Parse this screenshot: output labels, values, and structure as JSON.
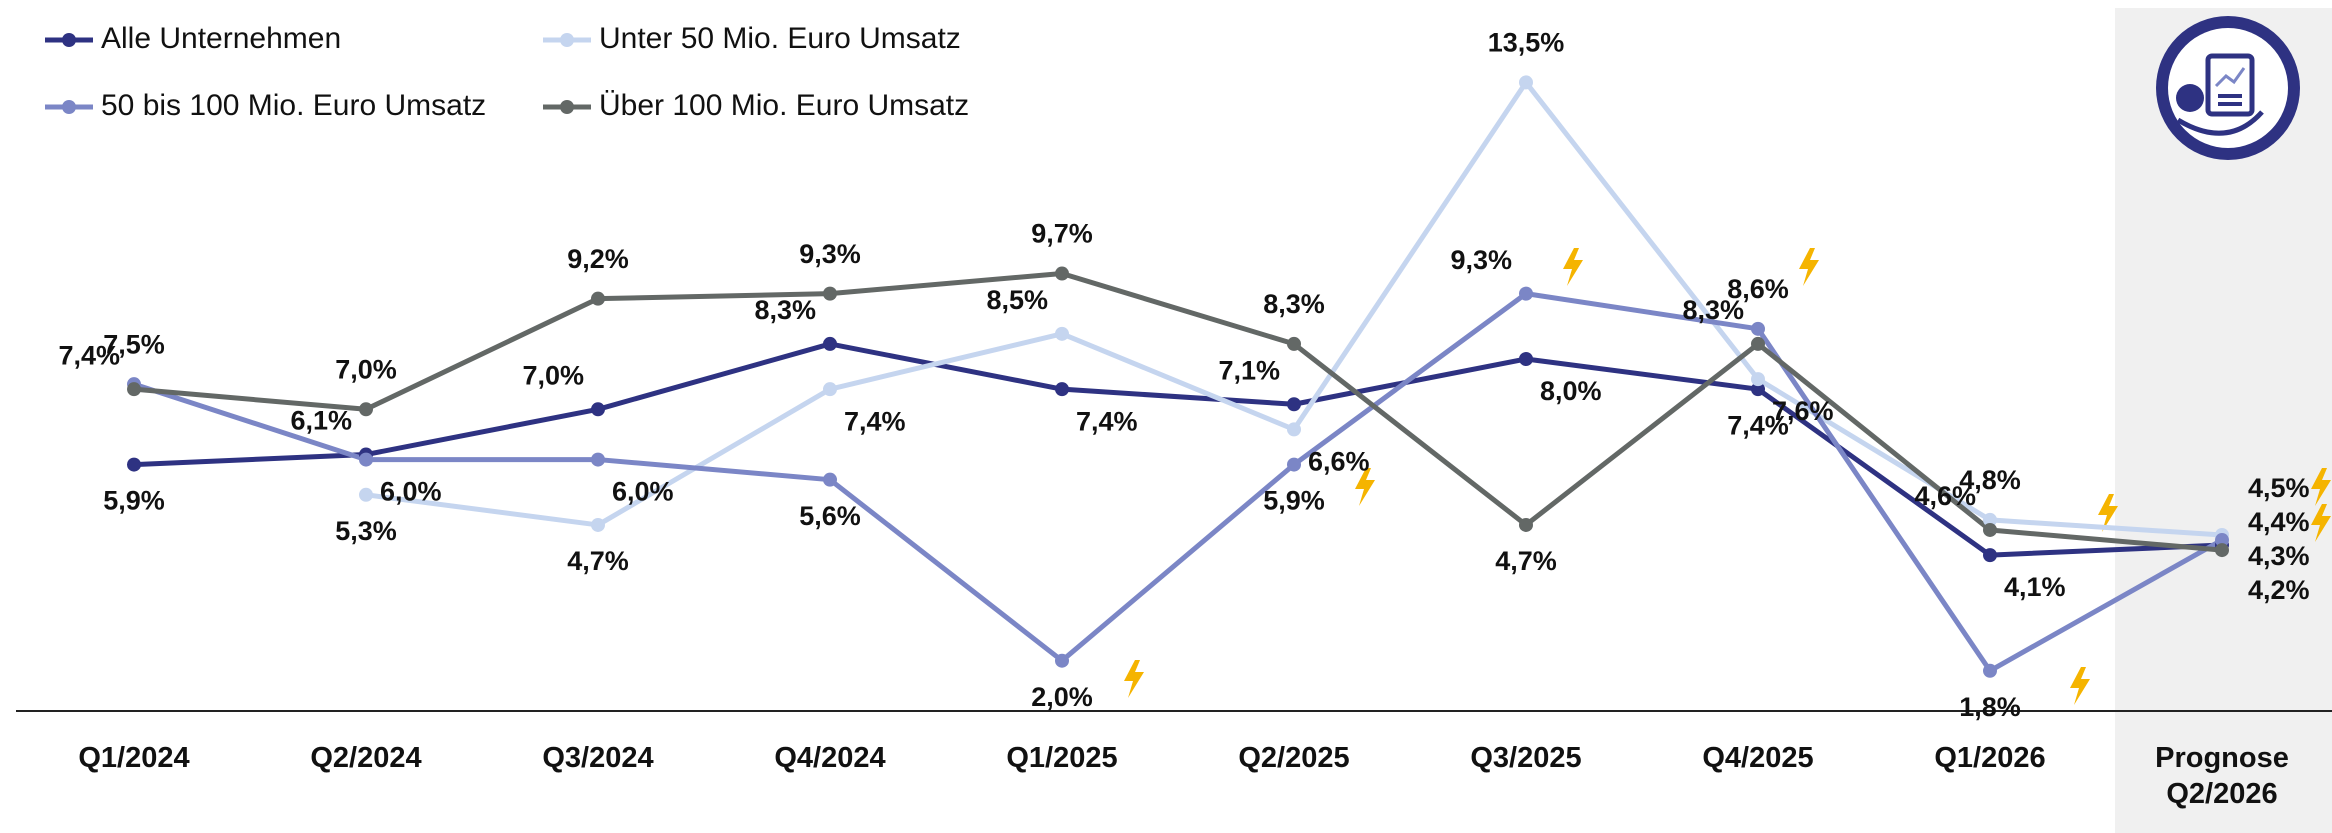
{
  "chart_data": {
    "type": "line",
    "categories": [
      "Q1/2024",
      "Q2/2024",
      "Q3/2024",
      "Q4/2024",
      "Q1/2025",
      "Q2/2025",
      "Q3/2025",
      "Q4/2025",
      "Q1/2026",
      "Prognose Q2/2026"
    ],
    "series": [
      {
        "name": "Alle Unternehmen",
        "color": "#2e3282",
        "values": [
          5.9,
          6.1,
          7.0,
          8.3,
          7.4,
          7.1,
          8.0,
          7.4,
          4.1,
          4.3
        ],
        "value_labels": [
          "5,9%",
          "6,1%",
          "7,0%",
          "8,3%",
          "7,4%",
          "7,1%",
          "8,0%",
          "7,4%",
          "4,1%",
          "4,3%"
        ]
      },
      {
        "name": "Unter 50 Mio. Euro Umsatz",
        "color": "#c5d5ef",
        "values": [
          null,
          5.3,
          4.7,
          7.4,
          8.5,
          6.6,
          13.5,
          7.6,
          4.8,
          4.5
        ],
        "value_labels": [
          null,
          "5,3%",
          "4,7%",
          "7,4%",
          "8,5%",
          "6,6%",
          "13,5%",
          "7,6%",
          "4,8%",
          "4,5%"
        ]
      },
      {
        "name": "50 bis 100 Mio. Euro Umsatz",
        "color": "#7b86c6",
        "values": [
          7.5,
          6.0,
          6.0,
          5.6,
          2.0,
          5.9,
          9.3,
          8.6,
          1.8,
          4.4
        ],
        "value_labels": [
          "7,5%",
          "6,0%",
          "6,0%",
          "5,6%",
          "2,0%",
          "5,9%",
          "9,3%",
          "8,6%",
          "1,8%",
          "4,4%"
        ]
      },
      {
        "name": "Über 100 Mio. Euro Umsatz",
        "color": "#636866",
        "values": [
          7.4,
          7.0,
          9.2,
          9.3,
          9.7,
          8.3,
          4.7,
          8.3,
          4.6,
          4.2
        ],
        "value_labels": [
          "7,4%",
          "7,0%",
          "9,2%",
          "9,3%",
          "9,7%",
          "8,3%",
          "4,7%",
          "8,3%",
          "4,6%",
          "4,2%"
        ]
      }
    ],
    "ylim": [
      1,
      15
    ]
  }
}
